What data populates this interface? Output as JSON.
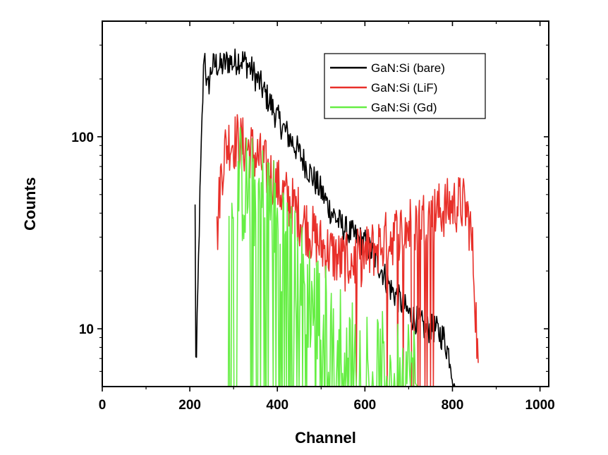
{
  "chart_data": {
    "type": "line",
    "title": "",
    "xlabel": "Channel",
    "ylabel": "Counts",
    "xlim": [
      0,
      1020
    ],
    "ylim_log": [
      5,
      400
    ],
    "y_scale": "log",
    "x_ticks": [
      0,
      200,
      400,
      600,
      800,
      1000
    ],
    "y_ticks": [
      10,
      100
    ],
    "grid": false,
    "legend_position": "top-right",
    "series": [
      {
        "name": "GaN:Si (bare)",
        "color": "#000000",
        "points": [
          [
            212,
            5
          ],
          [
            212,
            42
          ],
          [
            214,
            5
          ],
          [
            222,
            38
          ],
          [
            228,
            120
          ],
          [
            233,
            295
          ],
          [
            240,
            170
          ],
          [
            250,
            230
          ],
          [
            260,
            240
          ],
          [
            270,
            230
          ],
          [
            280,
            240
          ],
          [
            290,
            250
          ],
          [
            300,
            240
          ],
          [
            310,
            255
          ],
          [
            320,
            250
          ],
          [
            330,
            240
          ],
          [
            340,
            225
          ],
          [
            350,
            205
          ],
          [
            360,
            190
          ],
          [
            370,
            170
          ],
          [
            380,
            155
          ],
          [
            390,
            140
          ],
          [
            400,
            125
          ],
          [
            420,
            105
          ],
          [
            440,
            90
          ],
          [
            460,
            75
          ],
          [
            480,
            62
          ],
          [
            500,
            52
          ],
          [
            520,
            42
          ],
          [
            540,
            36
          ],
          [
            560,
            32
          ],
          [
            580,
            30
          ],
          [
            600,
            28
          ],
          [
            620,
            24
          ],
          [
            640,
            20
          ],
          [
            660,
            16
          ],
          [
            680,
            14
          ],
          [
            700,
            12
          ],
          [
            720,
            11
          ],
          [
            740,
            10
          ],
          [
            760,
            10
          ],
          [
            780,
            9
          ],
          [
            795,
            7
          ],
          [
            805,
            5
          ],
          [
            812,
            5
          ]
        ]
      },
      {
        "name": "GaN:Si (LiF)",
        "color": "#e8302a",
        "points": [
          [
            262,
            5
          ],
          [
            262,
            30
          ],
          [
            270,
            60
          ],
          [
            280,
            85
          ],
          [
            290,
            95
          ],
          [
            300,
            95
          ],
          [
            310,
            95
          ],
          [
            320,
            90
          ],
          [
            330,
            88
          ],
          [
            340,
            85
          ],
          [
            350,
            80
          ],
          [
            360,
            75
          ],
          [
            370,
            70
          ],
          [
            380,
            65
          ],
          [
            390,
            60
          ],
          [
            400,
            55
          ],
          [
            420,
            48
          ],
          [
            440,
            42
          ],
          [
            460,
            36
          ],
          [
            480,
            31
          ],
          [
            500,
            27
          ],
          [
            520,
            25
          ],
          [
            540,
            23
          ],
          [
            560,
            22
          ],
          [
            580,
            23
          ],
          [
            600,
            24
          ],
          [
            620,
            26
          ],
          [
            640,
            28
          ],
          [
            660,
            30
          ],
          [
            680,
            32
          ],
          [
            700,
            34
          ],
          [
            720,
            36
          ],
          [
            740,
            38
          ],
          [
            760,
            40
          ],
          [
            780,
            42
          ],
          [
            800,
            44
          ],
          [
            820,
            45
          ],
          [
            830,
            42
          ],
          [
            840,
            35
          ],
          [
            848,
            22
          ],
          [
            855,
            10
          ],
          [
            860,
            5
          ]
        ]
      },
      {
        "name": "GaN:Si (Gd)",
        "color": "#66ee44",
        "points": [
          [
            288,
            5
          ],
          [
            290,
            30
          ],
          [
            300,
            55
          ],
          [
            310,
            60
          ],
          [
            320,
            55
          ],
          [
            330,
            52
          ],
          [
            340,
            50
          ],
          [
            350,
            48
          ],
          [
            360,
            47
          ],
          [
            370,
            46
          ],
          [
            380,
            44
          ],
          [
            390,
            40
          ],
          [
            400,
            36
          ],
          [
            410,
            32
          ],
          [
            420,
            28
          ],
          [
            430,
            24
          ],
          [
            440,
            21
          ],
          [
            460,
            17
          ],
          [
            480,
            14
          ],
          [
            500,
            12
          ],
          [
            520,
            10
          ],
          [
            540,
            9
          ],
          [
            560,
            8
          ],
          [
            580,
            7
          ],
          [
            600,
            7
          ],
          [
            620,
            6
          ],
          [
            640,
            6
          ],
          [
            660,
            6
          ],
          [
            680,
            6
          ],
          [
            700,
            6
          ],
          [
            720,
            5
          ],
          [
            740,
            5
          ],
          [
            760,
            5
          ]
        ]
      }
    ]
  }
}
